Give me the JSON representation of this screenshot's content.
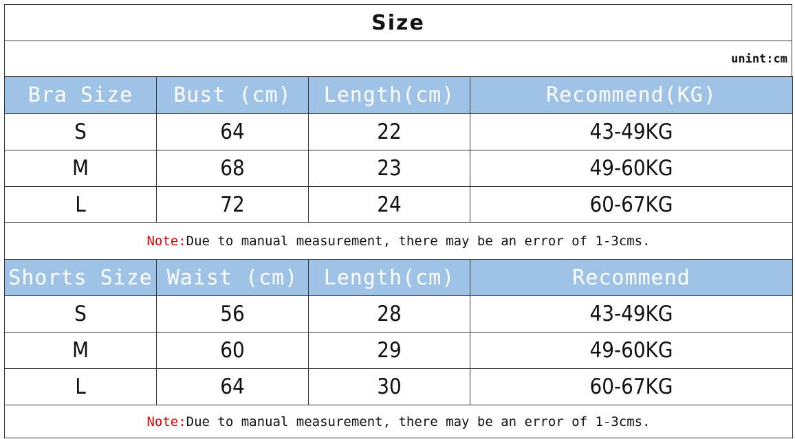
{
  "title": "Size",
  "unit": "unint:cm",
  "tables": [
    {
      "header": [
        "Bra Size",
        "Bust (cm)",
        "Length(cm)",
        "Recommend(KG)"
      ],
      "rows": [
        [
          "S",
          64,
          22,
          "43-49KG"
        ],
        [
          "M",
          68,
          23,
          "49-60KG"
        ],
        [
          "L",
          72,
          24,
          "60-67KG"
        ]
      ],
      "note": {
        "label": "Note:",
        "text": "Due to manual measurement, there may be an error of 1-3cms."
      }
    },
    {
      "header": [
        "Shorts Size",
        "Waist (cm)",
        "Length(cm)",
        "Recommend"
      ],
      "rows": [
        [
          "S",
          56,
          28,
          "43-49KG"
        ],
        [
          "M",
          60,
          29,
          "49-60KG"
        ],
        [
          "L",
          64,
          30,
          "60-67KG"
        ]
      ],
      "note": {
        "label": "Note:",
        "text": "Due to manual measurement, there may be an error of 1-3cms."
      }
    }
  ]
}
